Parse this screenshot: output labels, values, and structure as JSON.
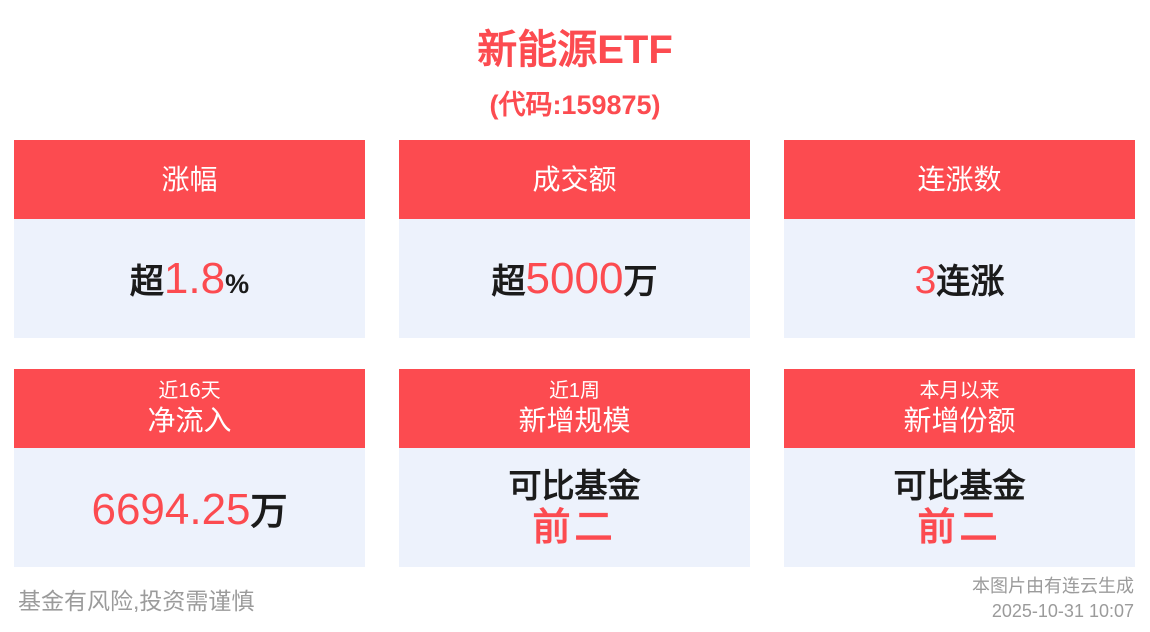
{
  "title": "新能源ETF",
  "subtitle": "(代码:159875)",
  "colors": {
    "accent_red": "#FC4B50",
    "card_body_bg": "#EDF2FC",
    "dark_text": "#1b1b1b",
    "footer_gray": "#9b9b9b"
  },
  "chart_data": {
    "type": "table",
    "title": "新能源ETF",
    "subtitle": "(代码:159875)",
    "categories": [
      "涨幅",
      "成交额",
      "连涨数",
      "近16天净流入",
      "近1周新增规模",
      "本月以来新增份额"
    ],
    "values": [
      "超1.8%",
      "超5000万",
      "3连涨",
      "6694.25万",
      "可比基金前二",
      "可比基金前二"
    ]
  },
  "cards": [
    {
      "header": "涨幅",
      "value": {
        "prefix": "超",
        "highlight": "1.8",
        "suffix": "%"
      }
    },
    {
      "header": "成交额",
      "value": {
        "prefix": "超",
        "highlight": "5000",
        "suffix": "万"
      }
    },
    {
      "header": "连涨数",
      "value": {
        "highlight": "3",
        "suffix": "连涨"
      }
    },
    {
      "header_period": "近16天",
      "header": "净流入",
      "value": {
        "highlight": "6694.25",
        "suffix": "万"
      }
    },
    {
      "header_period": "近1周",
      "header": "新增规模",
      "value": {
        "line1": "可比基金",
        "line2": "前二"
      }
    },
    {
      "header_period": "本月以来",
      "header": "新增份额",
      "value": {
        "line1": "可比基金",
        "line2": "前二"
      }
    }
  ],
  "footer": {
    "disclaimer": "基金有风险,投资需谨慎",
    "source": "本图片由有连云生成",
    "timestamp": "2025-10-31 10:07"
  }
}
